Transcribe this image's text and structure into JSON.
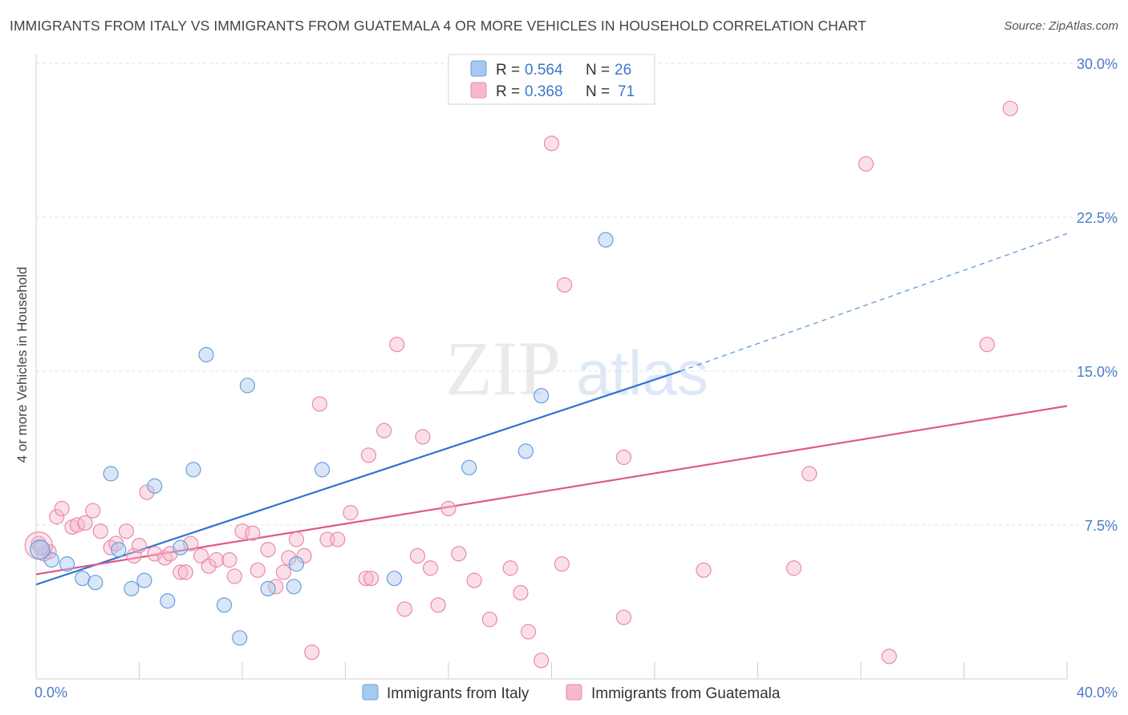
{
  "title": "IMMIGRANTS FROM ITALY VS IMMIGRANTS FROM GUATEMALA 4 OR MORE VEHICLES IN HOUSEHOLD CORRELATION CHART",
  "source": "Source: ZipAtlas.com",
  "watermark": {
    "zip": "ZIP",
    "atlas": "atlas"
  },
  "chart_data": {
    "type": "scatter",
    "title": "IMMIGRANTS FROM ITALY VS IMMIGRANTS FROM GUATEMALA 4 OR MORE VEHICLES IN HOUSEHOLD CORRELATION CHART",
    "xlabel": "",
    "ylabel": "4 or more Vehicles in Household",
    "xlim": [
      0,
      40
    ],
    "ylim": [
      0,
      30
    ],
    "x_tick_labels": [
      "0.0%",
      "40.0%"
    ],
    "y_ticks": [
      7.5,
      15.0,
      22.5,
      30.0
    ],
    "y_tick_labels": [
      "7.5%",
      "15.0%",
      "22.5%",
      "30.0%"
    ],
    "grid": true,
    "legend_position": "top-center",
    "series": [
      {
        "name": "Immigrants from Italy",
        "color": "#a8c8f0",
        "stroke": "#6a9fdc",
        "line_color": "#2f72d2",
        "R": "0.564",
        "N": "26",
        "trend": {
          "x0": 0,
          "y0": 4.6,
          "x1": 25,
          "y1": 15.0,
          "dash_x1": 40,
          "dash_y1": 21.7
        },
        "points": [
          [
            0.2,
            6.4
          ],
          [
            0.6,
            5.8
          ],
          [
            1.2,
            5.6
          ],
          [
            1.8,
            4.9
          ],
          [
            2.3,
            4.7
          ],
          [
            2.9,
            10.0
          ],
          [
            3.2,
            6.3
          ],
          [
            3.7,
            4.4
          ],
          [
            4.2,
            4.8
          ],
          [
            4.6,
            9.4
          ],
          [
            5.1,
            3.8
          ],
          [
            5.6,
            6.4
          ],
          [
            6.1,
            10.2
          ],
          [
            6.6,
            15.8
          ],
          [
            7.3,
            3.6
          ],
          [
            7.9,
            2.0
          ],
          [
            8.2,
            14.3
          ],
          [
            9.0,
            4.4
          ],
          [
            10.0,
            4.5
          ],
          [
            10.1,
            5.6
          ],
          [
            11.1,
            10.2
          ],
          [
            13.9,
            4.9
          ],
          [
            16.8,
            10.3
          ],
          [
            19.0,
            11.1
          ],
          [
            19.6,
            13.8
          ],
          [
            22.1,
            21.4
          ]
        ]
      },
      {
        "name": "Immigrants from Guatemala",
        "color": "#f7b8cc",
        "stroke": "#e98aa8",
        "line_color": "#e0578a",
        "R": "0.368",
        "N": "71",
        "trend": {
          "x0": 0,
          "y0": 5.1,
          "x1": 40,
          "y1": 13.3
        },
        "points": [
          [
            0.1,
            6.6
          ],
          [
            0.5,
            6.2
          ],
          [
            0.8,
            7.9
          ],
          [
            1.0,
            8.3
          ],
          [
            1.4,
            7.4
          ],
          [
            1.6,
            7.5
          ],
          [
            1.9,
            7.6
          ],
          [
            2.2,
            8.2
          ],
          [
            2.5,
            7.2
          ],
          [
            2.9,
            6.4
          ],
          [
            3.1,
            6.6
          ],
          [
            3.5,
            7.2
          ],
          [
            3.8,
            6.0
          ],
          [
            4.0,
            6.5
          ],
          [
            4.3,
            9.1
          ],
          [
            4.6,
            6.1
          ],
          [
            5.0,
            5.9
          ],
          [
            5.2,
            6.1
          ],
          [
            5.6,
            5.2
          ],
          [
            5.8,
            5.2
          ],
          [
            6.0,
            6.6
          ],
          [
            6.4,
            6.0
          ],
          [
            6.7,
            5.5
          ],
          [
            7.0,
            5.8
          ],
          [
            7.5,
            5.8
          ],
          [
            7.7,
            5.0
          ],
          [
            8.0,
            7.2
          ],
          [
            8.4,
            7.1
          ],
          [
            8.6,
            5.3
          ],
          [
            9.0,
            6.3
          ],
          [
            9.3,
            4.5
          ],
          [
            9.6,
            5.2
          ],
          [
            9.8,
            5.9
          ],
          [
            10.1,
            6.8
          ],
          [
            10.4,
            6.0
          ],
          [
            10.7,
            1.3
          ],
          [
            11.0,
            13.4
          ],
          [
            11.3,
            6.8
          ],
          [
            11.7,
            6.8
          ],
          [
            12.2,
            8.1
          ],
          [
            12.8,
            4.9
          ],
          [
            12.9,
            10.9
          ],
          [
            13.0,
            4.9
          ],
          [
            13.5,
            12.1
          ],
          [
            14.0,
            16.3
          ],
          [
            14.3,
            3.4
          ],
          [
            14.8,
            6.0
          ],
          [
            15.0,
            11.8
          ],
          [
            15.3,
            5.4
          ],
          [
            15.6,
            3.6
          ],
          [
            16.0,
            8.3
          ],
          [
            16.4,
            6.1
          ],
          [
            17.0,
            4.8
          ],
          [
            17.6,
            2.9
          ],
          [
            18.4,
            5.4
          ],
          [
            18.8,
            4.2
          ],
          [
            19.1,
            2.3
          ],
          [
            19.6,
            0.9
          ],
          [
            20.0,
            26.1
          ],
          [
            20.4,
            5.6
          ],
          [
            20.5,
            19.2
          ],
          [
            22.8,
            3.0
          ],
          [
            22.8,
            10.8
          ],
          [
            25.9,
            5.3
          ],
          [
            29.4,
            5.4
          ],
          [
            30.0,
            10.0
          ],
          [
            32.2,
            25.1
          ],
          [
            33.1,
            1.1
          ],
          [
            36.9,
            16.3
          ],
          [
            37.8,
            27.8
          ],
          [
            0.3,
            6.1
          ]
        ]
      }
    ]
  }
}
